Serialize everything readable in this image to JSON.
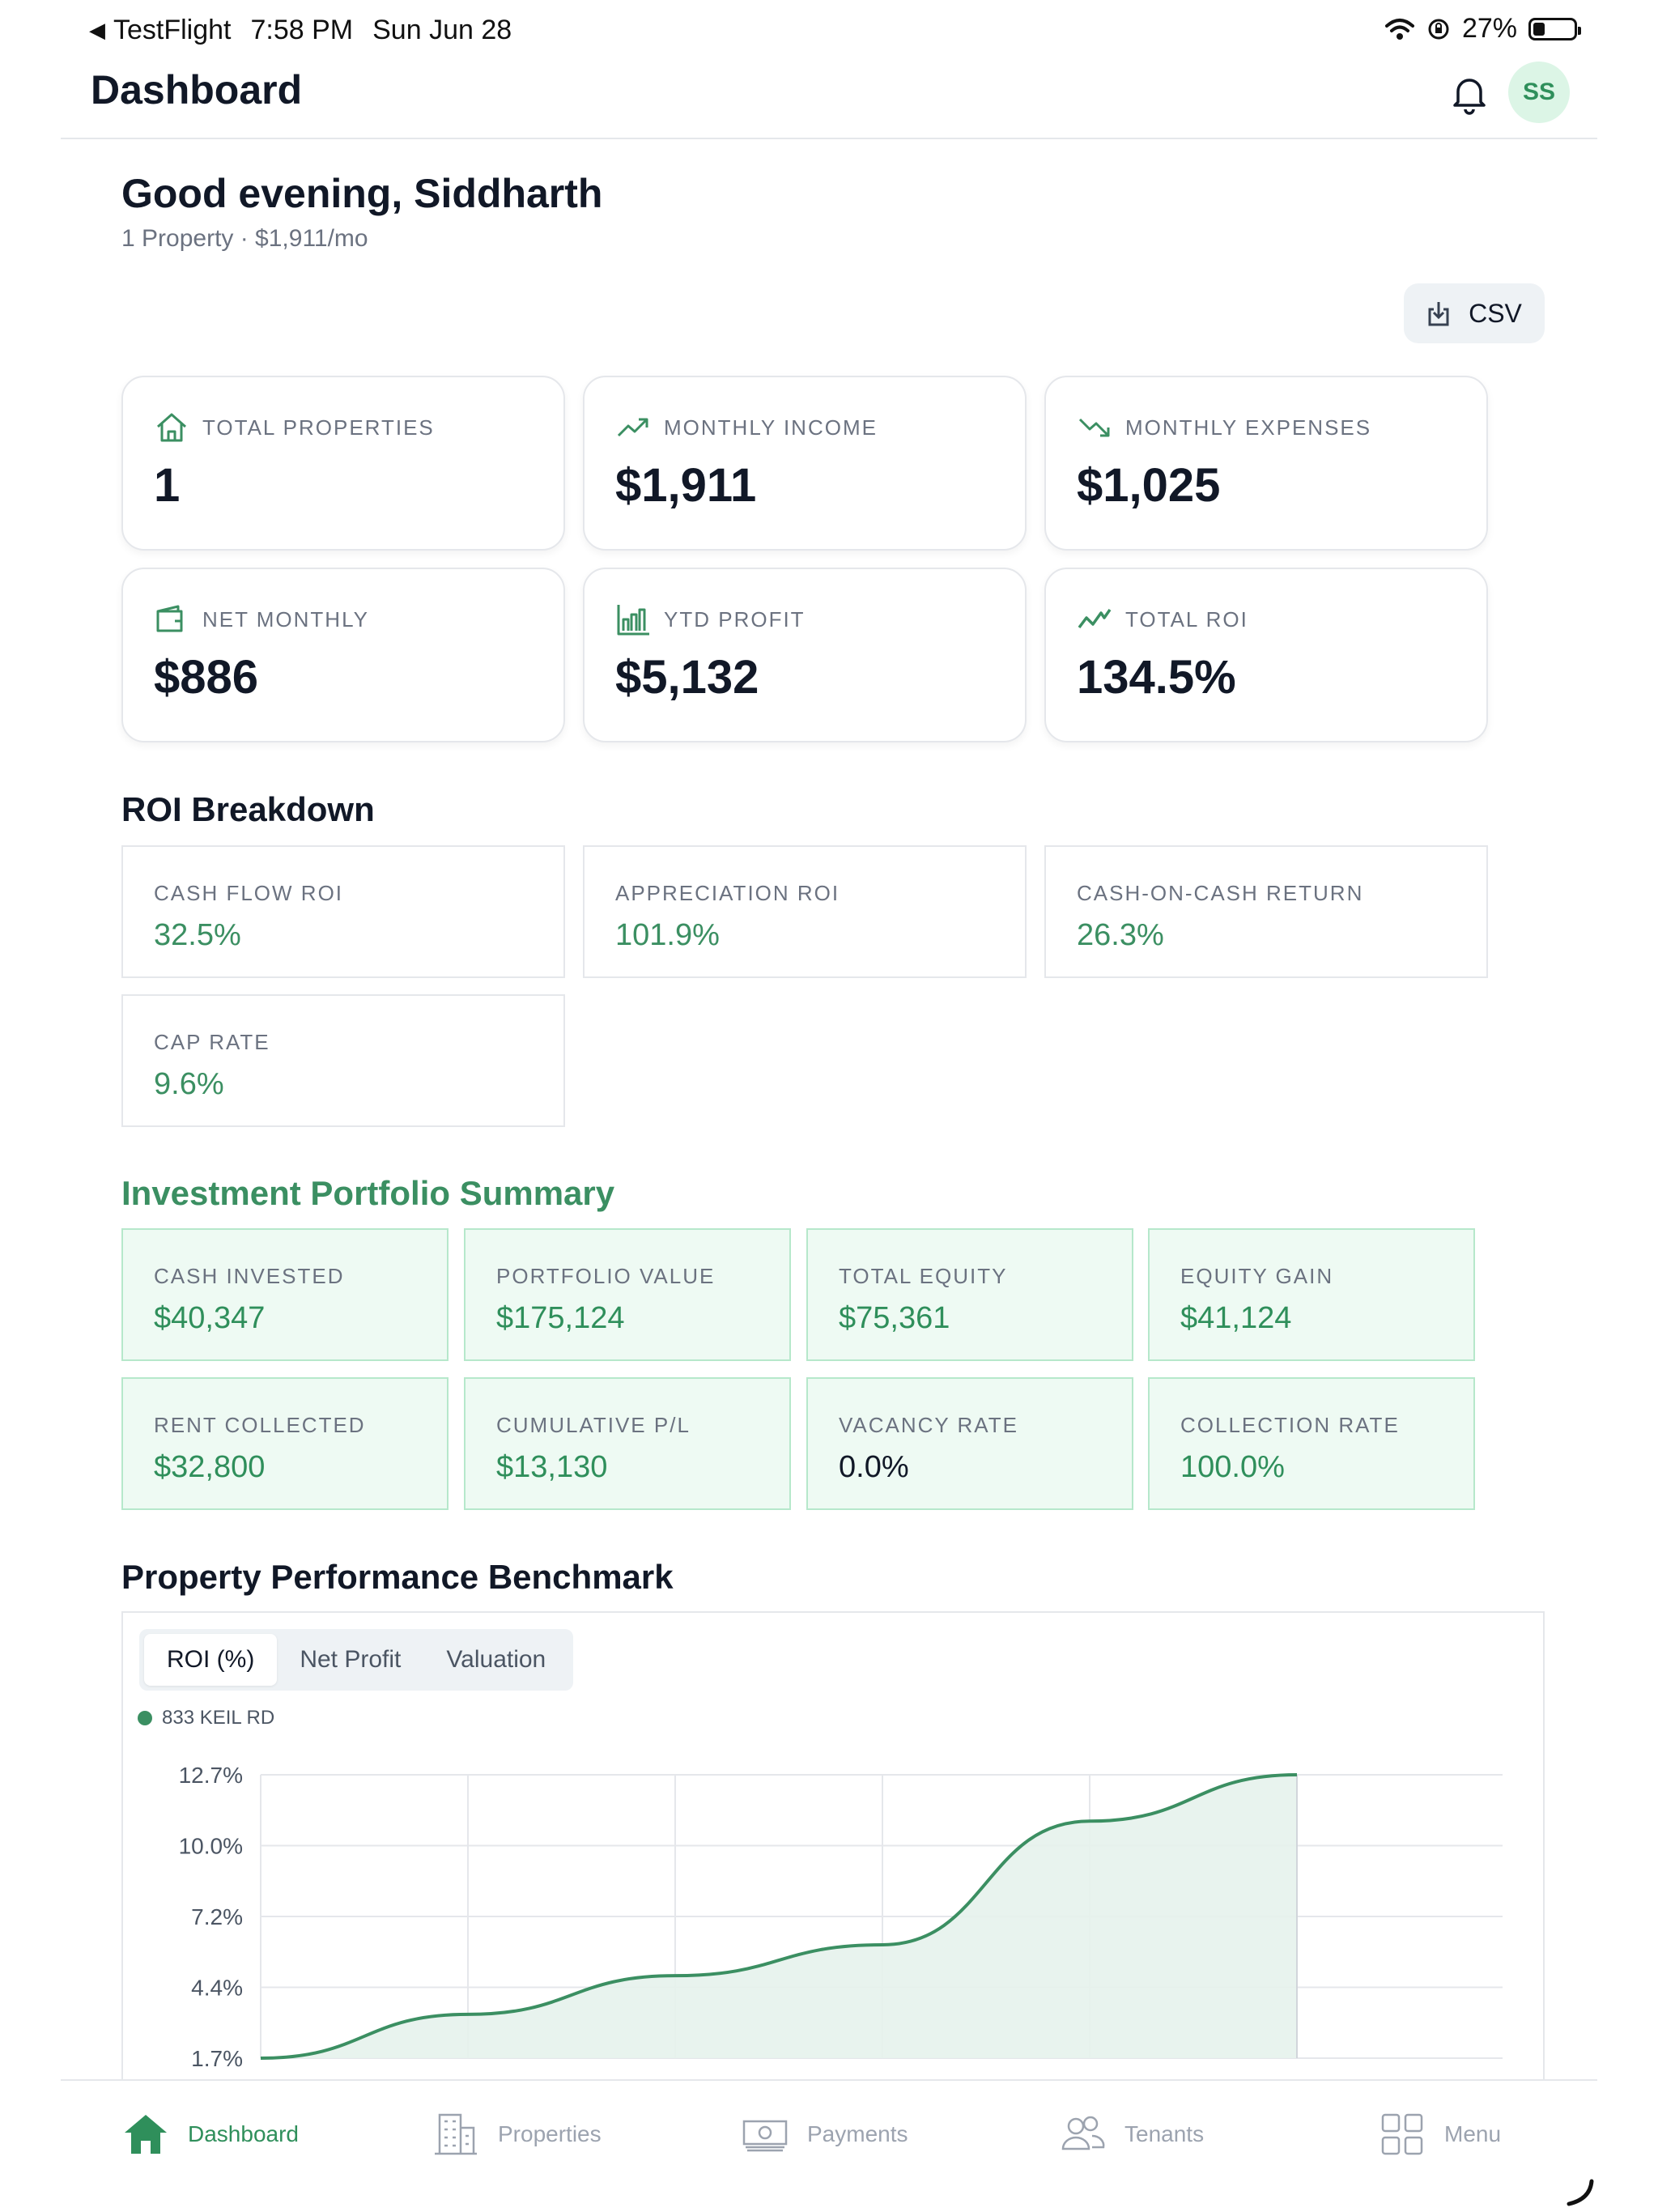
{
  "status_bar": {
    "back_app": "TestFlight",
    "time": "7:58 PM",
    "date": "Sun Jun 28",
    "battery": "27%"
  },
  "header": {
    "title": "Dashboard",
    "avatar_initials": "SS"
  },
  "greeting": {
    "title": "Good evening, Siddharth",
    "subtitle": "1 Property · $1,911/mo"
  },
  "actions": {
    "csv_label": "CSV"
  },
  "stats": [
    {
      "label": "TOTAL PROPERTIES",
      "value": "1",
      "icon": "home-icon"
    },
    {
      "label": "MONTHLY INCOME",
      "value": "$1,911",
      "icon": "trending-up-icon"
    },
    {
      "label": "MONTHLY EXPENSES",
      "value": "$1,025",
      "icon": "trending-down-icon"
    },
    {
      "label": "NET MONTHLY",
      "value": "$886",
      "icon": "wallet-icon"
    },
    {
      "label": "YTD PROFIT",
      "value": "$5,132",
      "icon": "bar-chart-icon"
    },
    {
      "label": "TOTAL ROI",
      "value": "134.5%",
      "icon": "activity-icon"
    }
  ],
  "roi_breakdown": {
    "title": "ROI Breakdown",
    "items": [
      {
        "label": "CASH FLOW ROI",
        "value": "32.5%"
      },
      {
        "label": "APPRECIATION ROI",
        "value": "101.9%"
      },
      {
        "label": "CASH-ON-CASH RETURN",
        "value": "26.3%"
      },
      {
        "label": "CAP RATE",
        "value": "9.6%"
      }
    ]
  },
  "portfolio": {
    "title": "Investment Portfolio Summary",
    "items": [
      {
        "label": "CASH INVESTED",
        "value": "$40,347"
      },
      {
        "label": "PORTFOLIO VALUE",
        "value": "$175,124"
      },
      {
        "label": "TOTAL EQUITY",
        "value": "$75,361"
      },
      {
        "label": "EQUITY GAIN",
        "value": "$41,124"
      },
      {
        "label": "RENT COLLECTED",
        "value": "$32,800"
      },
      {
        "label": "CUMULATIVE P/L",
        "value": "$13,130"
      },
      {
        "label": "VACANCY RATE",
        "value": "0.0%"
      },
      {
        "label": "COLLECTION RATE",
        "value": "100.0%"
      }
    ]
  },
  "benchmark": {
    "title": "Property Performance Benchmark",
    "tabs": [
      "ROI (%)",
      "Net Profit",
      "Valuation"
    ],
    "active_tab": "ROI (%)"
  },
  "chart_data": {
    "type": "area",
    "series": [
      {
        "name": "833 KEIL RD",
        "values": [
          1.7,
          3.4,
          4.9,
          6.1,
          10.9,
          12.7
        ]
      }
    ],
    "y_ticks": [
      "12.7%",
      "10.0%",
      "7.2%",
      "4.4%",
      "1.7%"
    ],
    "ylim": [
      1.7,
      12.7
    ],
    "color": "#3b8f62",
    "fill": "#e6f2ec",
    "grid": true
  },
  "bottom_nav": {
    "items": [
      {
        "label": "Dashboard",
        "icon": "home-icon",
        "active": true
      },
      {
        "label": "Properties",
        "icon": "building-icon",
        "active": false
      },
      {
        "label": "Payments",
        "icon": "money-icon",
        "active": false
      },
      {
        "label": "Tenants",
        "icon": "users-icon",
        "active": false
      },
      {
        "label": "Menu",
        "icon": "grid-icon",
        "active": false
      }
    ]
  }
}
